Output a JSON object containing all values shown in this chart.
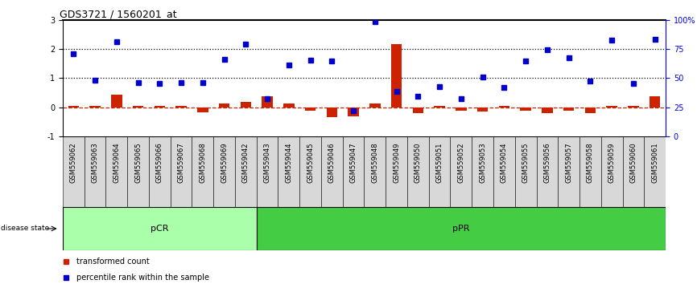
{
  "title": "GDS3721 / 1560201_at",
  "samples": [
    "GSM559062",
    "GSM559063",
    "GSM559064",
    "GSM559065",
    "GSM559066",
    "GSM559067",
    "GSM559068",
    "GSM559069",
    "GSM559042",
    "GSM559043",
    "GSM559044",
    "GSM559045",
    "GSM559046",
    "GSM559047",
    "GSM559048",
    "GSM559049",
    "GSM559050",
    "GSM559051",
    "GSM559052",
    "GSM559053",
    "GSM559054",
    "GSM559055",
    "GSM559056",
    "GSM559057",
    "GSM559058",
    "GSM559059",
    "GSM559060",
    "GSM559061"
  ],
  "transformed_count": [
    0.05,
    0.05,
    0.42,
    0.05,
    0.05,
    0.05,
    -0.18,
    0.12,
    0.18,
    0.38,
    0.12,
    -0.12,
    -0.35,
    -0.3,
    0.12,
    2.18,
    -0.2,
    0.05,
    -0.12,
    -0.15,
    0.05,
    -0.12,
    -0.2,
    -0.12,
    -0.2,
    0.05,
    0.05,
    0.38
  ],
  "percentile_rank": [
    1.85,
    0.92,
    2.25,
    0.85,
    0.82,
    0.85,
    0.85,
    1.65,
    2.18,
    0.3,
    1.45,
    1.62,
    1.58,
    -0.12,
    2.95,
    0.55,
    0.38,
    0.7,
    0.3,
    1.05,
    0.68,
    1.6,
    1.98,
    1.7,
    0.9,
    2.3,
    0.82,
    2.32
  ],
  "pcr_count": 9,
  "ppr_count": 19,
  "bar_color": "#cc2200",
  "square_color": "#0000cc",
  "pcr_color": "#aaffaa",
  "ppr_color": "#44cc44",
  "ylim": [
    -1,
    3
  ],
  "background_color": "#ffffff",
  "title_fontsize": 9,
  "tick_fontsize": 6,
  "ytick_fontsize": 7
}
